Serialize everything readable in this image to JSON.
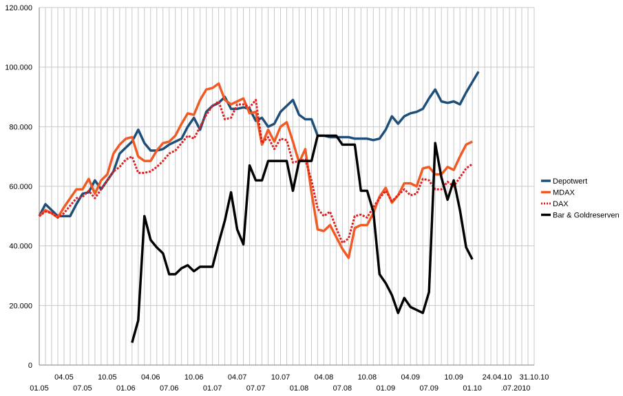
{
  "chart_data": {
    "type": "line",
    "title": "",
    "xlabel": "",
    "ylabel": "",
    "ylim": [
      0,
      120000
    ],
    "grid": true,
    "legend_position": "right",
    "y_ticks": [
      "0",
      "20.000",
      "40.000",
      "60.000",
      "80.000",
      "100.000",
      "120.000"
    ],
    "y_tick_values": [
      0,
      20000,
      40000,
      60000,
      80000,
      100000,
      120000
    ],
    "x_count": 81,
    "x_labels_upper": [
      {
        "i": 4,
        "label": "04.05"
      },
      {
        "i": 11,
        "label": "10.05"
      },
      {
        "i": 18,
        "label": "04.06"
      },
      {
        "i": 25,
        "label": "10.06"
      },
      {
        "i": 32,
        "label": "04.07"
      },
      {
        "i": 39,
        "label": "10.07"
      },
      {
        "i": 46,
        "label": "04.08"
      },
      {
        "i": 53,
        "label": "10.08"
      },
      {
        "i": 60,
        "label": "04.09"
      },
      {
        "i": 67,
        "label": "10.09"
      },
      {
        "i": 74,
        "label": "24.04.10"
      },
      {
        "i": 80,
        "label": "31.10.10"
      }
    ],
    "x_labels_lower": [
      {
        "i": 0,
        "label": "01.05"
      },
      {
        "i": 7,
        "label": "07.05"
      },
      {
        "i": 14,
        "label": "01.06"
      },
      {
        "i": 21,
        "label": "07.06"
      },
      {
        "i": 28,
        "label": "01.07"
      },
      {
        "i": 35,
        "label": "07.07"
      },
      {
        "i": 42,
        "label": "01.08"
      },
      {
        "i": 49,
        "label": "07.08"
      },
      {
        "i": 56,
        "label": "01.09"
      },
      {
        "i": 63,
        "label": "07.09"
      },
      {
        "i": 70,
        "label": "01.10"
      },
      {
        "i": 77,
        "label": ".07.2010"
      }
    ],
    "series": [
      {
        "name": "Depotwert",
        "color": "#1f4e79",
        "style": "solid",
        "points": [
          [
            0,
            50000
          ],
          [
            1,
            54000
          ],
          [
            2,
            52000
          ],
          [
            3,
            50000
          ],
          [
            4,
            50000
          ],
          [
            5,
            50000
          ],
          [
            6,
            54000
          ],
          [
            7,
            57500
          ],
          [
            8,
            58000
          ],
          [
            9,
            62000
          ],
          [
            10,
            59000
          ],
          [
            11,
            62000
          ],
          [
            12,
            65000
          ],
          [
            13,
            71000
          ],
          [
            14,
            73000
          ],
          [
            15,
            75000
          ],
          [
            16,
            79000
          ],
          [
            17,
            74500
          ],
          [
            18,
            72000
          ],
          [
            19,
            72000
          ],
          [
            20,
            72500
          ],
          [
            21,
            74000
          ],
          [
            22,
            75000
          ],
          [
            23,
            76000
          ],
          [
            24,
            80000
          ],
          [
            25,
            83000
          ],
          [
            26,
            79000
          ],
          [
            27,
            85000
          ],
          [
            28,
            87000
          ],
          [
            29,
            88000
          ],
          [
            30,
            90000
          ],
          [
            31,
            86000
          ],
          [
            32,
            86000
          ],
          [
            33,
            86500
          ],
          [
            34,
            86000
          ],
          [
            35,
            82000
          ],
          [
            36,
            83000
          ],
          [
            37,
            80000
          ],
          [
            38,
            81000
          ],
          [
            39,
            85000
          ],
          [
            40,
            87000
          ],
          [
            41,
            89000
          ],
          [
            42,
            84000
          ],
          [
            43,
            82500
          ],
          [
            44,
            82500
          ],
          [
            45,
            77000
          ],
          [
            46,
            77000
          ],
          [
            47,
            76500
          ],
          [
            48,
            76500
          ],
          [
            49,
            76500
          ],
          [
            50,
            76500
          ],
          [
            51,
            76000
          ],
          [
            52,
            76000
          ],
          [
            53,
            76000
          ],
          [
            54,
            75500
          ],
          [
            55,
            76000
          ],
          [
            56,
            79000
          ],
          [
            57,
            83500
          ],
          [
            58,
            81000
          ],
          [
            59,
            83500
          ],
          [
            60,
            84500
          ],
          [
            61,
            85000
          ],
          [
            62,
            86000
          ],
          [
            63,
            89500
          ],
          [
            64,
            92500
          ],
          [
            65,
            88500
          ],
          [
            66,
            88000
          ],
          [
            67,
            88500
          ],
          [
            68,
            87500
          ],
          [
            69,
            91500
          ],
          [
            70,
            95000
          ],
          [
            71,
            98500
          ]
        ]
      },
      {
        "name": "MDAX",
        "color": "#f05a24",
        "style": "solid",
        "points": [
          [
            0,
            50000
          ],
          [
            1,
            52000
          ],
          [
            2,
            51000
          ],
          [
            3,
            49500
          ],
          [
            4,
            53000
          ],
          [
            5,
            56000
          ],
          [
            6,
            59000
          ],
          [
            7,
            59000
          ],
          [
            8,
            62500
          ],
          [
            9,
            57500
          ],
          [
            10,
            62000
          ],
          [
            11,
            64000
          ],
          [
            12,
            71000
          ],
          [
            13,
            74000
          ],
          [
            14,
            76000
          ],
          [
            15,
            76500
          ],
          [
            16,
            70000
          ],
          [
            17,
            68500
          ],
          [
            18,
            68500
          ],
          [
            19,
            72000
          ],
          [
            20,
            74500
          ],
          [
            21,
            75000
          ],
          [
            22,
            77000
          ],
          [
            23,
            81000
          ],
          [
            24,
            84500
          ],
          [
            25,
            84000
          ],
          [
            26,
            89000
          ],
          [
            27,
            92500
          ],
          [
            28,
            93000
          ],
          [
            29,
            94500
          ],
          [
            30,
            89000
          ],
          [
            31,
            87500
          ],
          [
            32,
            88500
          ],
          [
            33,
            89500
          ],
          [
            34,
            84500
          ],
          [
            35,
            85000
          ],
          [
            36,
            74000
          ],
          [
            37,
            79000
          ],
          [
            38,
            75000
          ],
          [
            39,
            80000
          ],
          [
            40,
            81500
          ],
          [
            41,
            75000
          ],
          [
            42,
            68000
          ],
          [
            43,
            72500
          ],
          [
            44,
            58000
          ],
          [
            45,
            45500
          ],
          [
            46,
            45000
          ],
          [
            47,
            47000
          ],
          [
            48,
            43000
          ],
          [
            49,
            39000
          ],
          [
            50,
            36000
          ],
          [
            51,
            46000
          ],
          [
            52,
            47000
          ],
          [
            53,
            47000
          ],
          [
            54,
            51000
          ],
          [
            55,
            56500
          ],
          [
            56,
            59500
          ],
          [
            57,
            54500
          ],
          [
            58,
            57000
          ],
          [
            59,
            61000
          ],
          [
            60,
            61000
          ],
          [
            61,
            60000
          ],
          [
            62,
            66000
          ],
          [
            63,
            66500
          ],
          [
            64,
            64000
          ],
          [
            65,
            64000
          ],
          [
            66,
            66500
          ],
          [
            67,
            65500
          ],
          [
            68,
            70000
          ],
          [
            69,
            74000
          ],
          [
            70,
            75000
          ]
        ]
      },
      {
        "name": "DAX",
        "color": "#e02020",
        "style": "dotted",
        "points": [
          [
            0,
            50000
          ],
          [
            1,
            51500
          ],
          [
            2,
            51000
          ],
          [
            3,
            49500
          ],
          [
            4,
            51000
          ],
          [
            5,
            53500
          ],
          [
            6,
            56000
          ],
          [
            7,
            56500
          ],
          [
            8,
            58500
          ],
          [
            9,
            56000
          ],
          [
            10,
            59000
          ],
          [
            11,
            62000
          ],
          [
            12,
            65000
          ],
          [
            13,
            66500
          ],
          [
            14,
            69000
          ],
          [
            15,
            70000
          ],
          [
            16,
            64500
          ],
          [
            17,
            64500
          ],
          [
            18,
            65000
          ],
          [
            19,
            66500
          ],
          [
            20,
            68500
          ],
          [
            21,
            71000
          ],
          [
            22,
            72000
          ],
          [
            23,
            74500
          ],
          [
            24,
            77000
          ],
          [
            25,
            76000
          ],
          [
            26,
            80000
          ],
          [
            27,
            84000
          ],
          [
            28,
            87000
          ],
          [
            29,
            88500
          ],
          [
            30,
            82500
          ],
          [
            31,
            83000
          ],
          [
            32,
            87500
          ],
          [
            33,
            87500
          ],
          [
            34,
            86500
          ],
          [
            35,
            89000
          ],
          [
            36,
            74500
          ],
          [
            37,
            76500
          ],
          [
            38,
            72500
          ],
          [
            39,
            76000
          ],
          [
            40,
            75500
          ],
          [
            41,
            68000
          ],
          [
            42,
            68500
          ],
          [
            43,
            69000
          ],
          [
            44,
            62000
          ],
          [
            45,
            52500
          ],
          [
            46,
            50000
          ],
          [
            47,
            51500
          ],
          [
            48,
            46000
          ],
          [
            49,
            41000
          ],
          [
            50,
            42500
          ],
          [
            51,
            50000
          ],
          [
            52,
            50500
          ],
          [
            53,
            49500
          ],
          [
            54,
            53000
          ],
          [
            55,
            56000
          ],
          [
            56,
            58500
          ],
          [
            57,
            55000
          ],
          [
            58,
            57000
          ],
          [
            59,
            59000
          ],
          [
            60,
            57000
          ],
          [
            61,
            57500
          ],
          [
            62,
            62500
          ],
          [
            63,
            62000
          ],
          [
            64,
            59000
          ],
          [
            65,
            59000
          ],
          [
            66,
            61500
          ],
          [
            67,
            60000
          ],
          [
            68,
            63000
          ],
          [
            69,
            66000
          ],
          [
            70,
            67500
          ]
        ]
      },
      {
        "name": "Bar & Goldreserven",
        "color": "#000000",
        "style": "solid",
        "points": [
          [
            15,
            7500
          ],
          [
            16,
            15000
          ],
          [
            17,
            50000
          ],
          [
            18,
            42000
          ],
          [
            19,
            39500
          ],
          [
            20,
            37500
          ],
          [
            21,
            30500
          ],
          [
            22,
            30500
          ],
          [
            23,
            32500
          ],
          [
            24,
            33500
          ],
          [
            25,
            31500
          ],
          [
            26,
            33000
          ],
          [
            27,
            33000
          ],
          [
            28,
            33000
          ],
          [
            29,
            41000
          ],
          [
            30,
            48500
          ],
          [
            31,
            58000
          ],
          [
            32,
            45500
          ],
          [
            33,
            40500
          ],
          [
            34,
            67000
          ],
          [
            35,
            62000
          ],
          [
            36,
            62000
          ],
          [
            37,
            68500
          ],
          [
            38,
            68500
          ],
          [
            39,
            68500
          ],
          [
            40,
            68500
          ],
          [
            41,
            58500
          ],
          [
            42,
            68500
          ],
          [
            43,
            68500
          ],
          [
            44,
            68500
          ],
          [
            45,
            77000
          ],
          [
            46,
            77000
          ],
          [
            47,
            77000
          ],
          [
            48,
            77000
          ],
          [
            49,
            74000
          ],
          [
            50,
            74000
          ],
          [
            51,
            74000
          ],
          [
            52,
            58500
          ],
          [
            53,
            58500
          ],
          [
            54,
            51500
          ],
          [
            55,
            30500
          ],
          [
            56,
            27500
          ],
          [
            57,
            23500
          ],
          [
            58,
            17500
          ],
          [
            59,
            22500
          ],
          [
            60,
            19500
          ],
          [
            61,
            18500
          ],
          [
            62,
            17500
          ],
          [
            63,
            24500
          ],
          [
            64,
            74500
          ],
          [
            65,
            63000
          ],
          [
            66,
            55500
          ],
          [
            67,
            62000
          ],
          [
            68,
            52000
          ],
          [
            69,
            39500
          ],
          [
            70,
            35500
          ]
        ]
      }
    ]
  }
}
